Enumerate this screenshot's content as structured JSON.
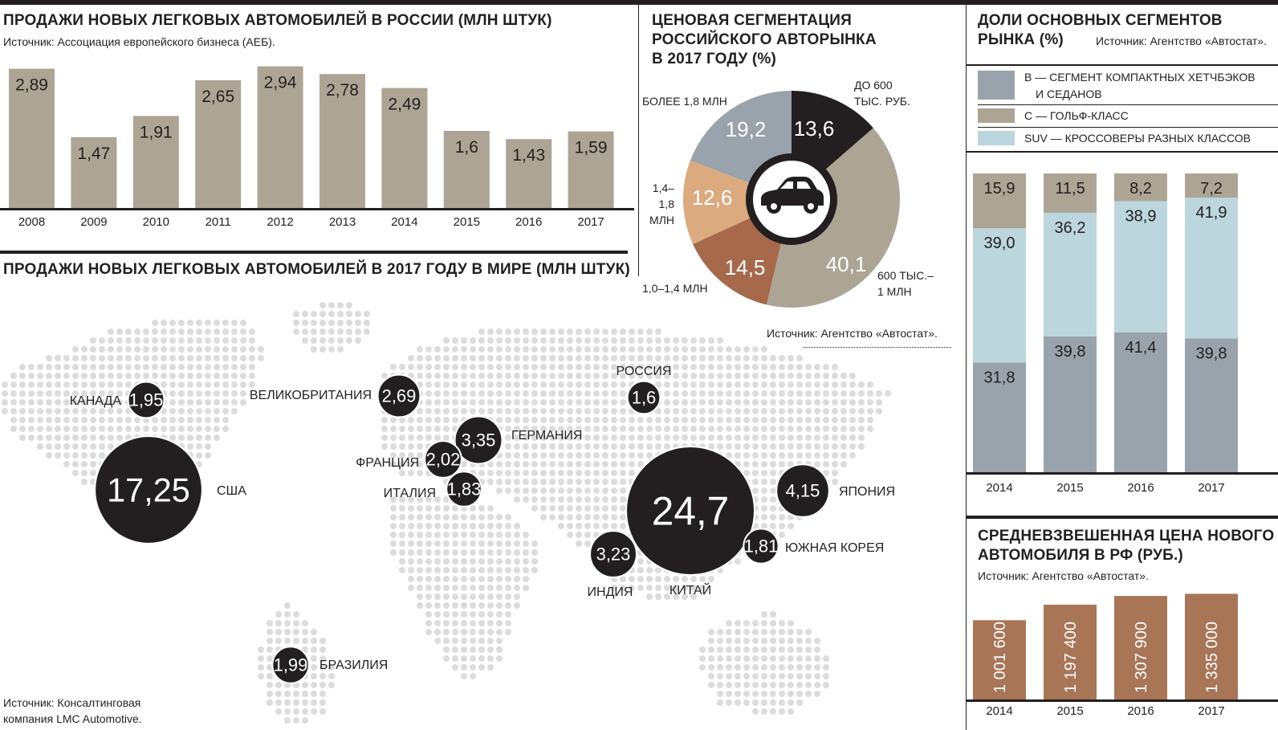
{
  "panels": {
    "russia_sales": {
      "title": "ПРОДАЖИ НОВЫХ ЛЕГКОВЫХ АВТОМОБИЛЕЙ В РОССИИ (МЛН ШТУК)",
      "source": "Источник: Ассоциация европейского бизнеса (АЕБ)."
    },
    "world_sales": {
      "title": "ПРОДАЖИ НОВЫХ ЛЕГКОВЫХ АВТОМОБИЛЕЙ В 2017 ГОДУ В МИРЕ (МЛН ШТУК)",
      "source_line1": "Источник: Консалтинговая",
      "source_line2": "компания LMC Automotive."
    },
    "price_segmentation": {
      "title_line1": "ЦЕНОВАЯ СЕГМЕНТАЦИЯ",
      "title_line2": "РОССИЙСКОГО АВТОРЫНКА",
      "title_line3": "В 2017 ГОДУ (%)",
      "source": "Источник: Агентство «Автостат»."
    },
    "segment_shares": {
      "title_line1": "ДОЛИ ОСНОВНЫХ СЕГМЕНТОВ",
      "title_line2": "РЫНКА (%)",
      "source": "Источник: Агентство «Автостат».",
      "legend": {
        "b_line1": "B — СЕГМЕНТ КОМПАКТНЫХ ХЕТЧБЭКОВ",
        "b_line2": "И СЕДАНОВ",
        "c": "С — ГОЛЬФ-КЛАСС",
        "suv": "SUV — КРОССОВЕРЫ РАЗНЫХ КЛАССОВ"
      }
    },
    "avg_price": {
      "title_line1": "СРЕДНЕВЗВЕШЕННАЯ ЦЕНА НОВОГО",
      "title_line2": "АВТОМОБИЛЯ В РФ (РУБ.)",
      "source": "Источник: Агентство «Автостат»."
    }
  },
  "colors": {
    "dark": "#231f20",
    "olive_gray": "#aca595",
    "slate": "#9aa3ab",
    "light_blue": "#bdd5dc",
    "tan": "#dbaa7f",
    "rust": "#a6694c",
    "brown_bar": "#a87556",
    "map_dot": "#dcdcdc"
  },
  "chart_data": [
    {
      "id": "russia_sales",
      "type": "bar",
      "categories": [
        "2008",
        "2009",
        "2010",
        "2011",
        "2012",
        "2013",
        "2014",
        "2015",
        "2016",
        "2017"
      ],
      "values": [
        2.89,
        1.47,
        1.91,
        2.65,
        2.94,
        2.78,
        2.49,
        1.6,
        1.43,
        1.59
      ],
      "labels": [
        "2,89",
        "1,47",
        "1,91",
        "2,65",
        "2,94",
        "2,78",
        "2,49",
        "1,6",
        "1,43",
        "1,59"
      ],
      "ylim": [
        0,
        3.1
      ],
      "grid": false
    },
    {
      "id": "price_segmentation",
      "type": "pie",
      "donut": true,
      "center_icon": "car-icon",
      "slices": [
        {
          "name_line1": "ДО 600",
          "name_line2": "ТЫС. РУБ.",
          "name_line3": "",
          "value": 13.6,
          "label": "13,6",
          "color": "#231f20"
        },
        {
          "name_line1": "600 ТЫС.–",
          "name_line2": "1 МЛН",
          "name_line3": "",
          "value": 40.1,
          "label": "40,1",
          "color": "#aca595"
        },
        {
          "name_line1": "1,0–1,4 МЛН",
          "name_line2": "",
          "name_line3": "",
          "value": 14.5,
          "label": "14,5",
          "color": "#a6694c"
        },
        {
          "name_line1": "1,4–",
          "name_line2": "1,8",
          "name_line3": "МЛН",
          "value": 12.6,
          "label": "12,6",
          "color": "#dbaa7f"
        },
        {
          "name_line1": "БОЛЕЕ 1,8 МЛН",
          "name_line2": "",
          "name_line3": "",
          "value": 19.2,
          "label": "19,2",
          "color": "#9aa3ab"
        }
      ]
    },
    {
      "id": "segment_shares",
      "type": "bar",
      "stacked": true,
      "categories": [
        "2014",
        "2015",
        "2016",
        "2017"
      ],
      "series": [
        {
          "name": "B",
          "values": [
            31.8,
            39.8,
            41.4,
            39.8
          ],
          "labels": [
            "31,8",
            "39,8",
            "41,4",
            "39,8"
          ],
          "color": "#9aa3ab"
        },
        {
          "name": "SUV",
          "values": [
            39.0,
            36.2,
            38.9,
            41.9
          ],
          "labels": [
            "39,0",
            "36,2",
            "38,9",
            "41,9"
          ],
          "color": "#bdd5dc"
        },
        {
          "name": "C",
          "values": [
            15.9,
            11.5,
            8.2,
            7.2
          ],
          "labels": [
            "15,9",
            "11,5",
            "8,2",
            "7,2"
          ],
          "color": "#aca595"
        }
      ]
    },
    {
      "id": "avg_price",
      "type": "bar",
      "categories": [
        "2014",
        "2015",
        "2016",
        "2017"
      ],
      "values": [
        1001600,
        1197400,
        1307900,
        1335000
      ],
      "labels": [
        "1 001 600",
        "1 197 400",
        "1 307 900",
        "1 335 000"
      ],
      "ylim": [
        0,
        1400000
      ]
    },
    {
      "id": "world_sales",
      "type": "scatter",
      "points": [
        {
          "country": "США",
          "value": 17.25,
          "label": "17,25"
        },
        {
          "country": "КИТАЙ",
          "value": 24.7,
          "label": "24,7"
        },
        {
          "country": "ЯПОНИЯ",
          "value": 4.15,
          "label": "4,15"
        },
        {
          "country": "ГЕРМАНИЯ",
          "value": 3.35,
          "label": "3,35"
        },
        {
          "country": "ИНДИЯ",
          "value": 3.23,
          "label": "3,23"
        },
        {
          "country": "ВЕЛИКОБРИТАНИЯ",
          "value": 2.69,
          "label": "2,69"
        },
        {
          "country": "ФРАНЦИЯ",
          "value": 2.02,
          "label": "2,02"
        },
        {
          "country": "БРАЗИЛИЯ",
          "value": 1.99,
          "label": "1,99"
        },
        {
          "country": "КАНАДА",
          "value": 1.95,
          "label": "1,95"
        },
        {
          "country": "ИТАЛИЯ",
          "value": 1.83,
          "label": "1,83"
        },
        {
          "country": "ЮЖНАЯ КОРЕЯ",
          "value": 1.81,
          "label": "1,81"
        },
        {
          "country": "РОССИЯ",
          "value": 1.6,
          "label": "1,6"
        }
      ]
    }
  ]
}
